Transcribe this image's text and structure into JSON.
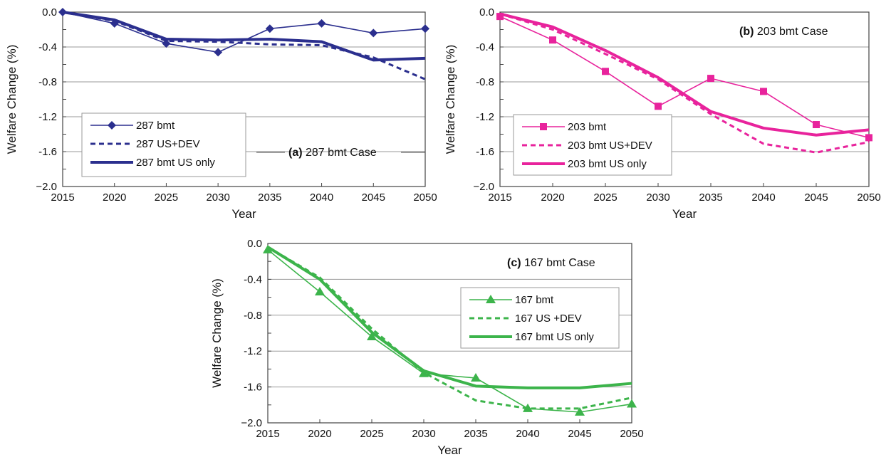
{
  "chart_data": [
    {
      "type": "line",
      "panel_label": "(a)",
      "case_title": "287 bmt Case",
      "xlabel": "Year",
      "ylabel": "Welfare Change (%)",
      "x": [
        2015,
        2020,
        2025,
        2030,
        2035,
        2040,
        2045,
        2050
      ],
      "x_ticks": [
        "2015",
        "2020",
        "2025",
        "2030",
        "2035",
        "2040",
        "2045",
        "2050"
      ],
      "y_ticks": [
        "0.0",
        "-0.4",
        "-0.8",
        "-1.2",
        "-1.6",
        "−2.0"
      ],
      "ylim": [
        -2.0,
        0.0
      ],
      "color": "#2b2f8e",
      "series": [
        {
          "name": "287 bmt",
          "style": "thin-diamond",
          "values": [
            0.0,
            -0.13,
            -0.36,
            -0.46,
            -0.19,
            -0.13,
            -0.24,
            -0.19
          ]
        },
        {
          "name": "287 US+DEV",
          "style": "dashed",
          "values": [
            0.0,
            -0.1,
            -0.33,
            -0.34,
            -0.37,
            -0.38,
            -0.52,
            -0.77
          ]
        },
        {
          "name": "287 bmt US only",
          "style": "thick",
          "values": [
            0.0,
            -0.09,
            -0.31,
            -0.32,
            -0.31,
            -0.34,
            -0.55,
            -0.53
          ]
        }
      ],
      "legend_position": "bottom-left"
    },
    {
      "type": "line",
      "panel_label": "(b)",
      "case_title": "203 bmt Case",
      "xlabel": "Year",
      "ylabel": "Welfare Change (%)",
      "x": [
        2015,
        2020,
        2025,
        2030,
        2035,
        2040,
        2045,
        2050
      ],
      "x_ticks": [
        "2015",
        "2020",
        "2025",
        "2030",
        "2035",
        "2040",
        "2045",
        "2050"
      ],
      "y_ticks": [
        "0.0",
        "-0.4",
        "-0.8",
        "-1.2",
        "-1.6",
        "−2.0"
      ],
      "ylim": [
        -2.0,
        0.0
      ],
      "color": "#e8239c",
      "series": [
        {
          "name": "203 bmt",
          "style": "thin-square",
          "values": [
            -0.05,
            -0.32,
            -0.68,
            -1.08,
            -0.76,
            -0.91,
            -1.29,
            -1.44
          ]
        },
        {
          "name": "203 bmt US+DEV",
          "style": "dashed",
          "values": [
            -0.02,
            -0.2,
            -0.48,
            -0.77,
            -1.17,
            -1.51,
            -1.61,
            -1.49
          ]
        },
        {
          "name": "203 bmt US only",
          "style": "thick",
          "values": [
            -0.02,
            -0.17,
            -0.44,
            -0.75,
            -1.14,
            -1.33,
            -1.41,
            -1.35
          ]
        }
      ],
      "legend_position": "bottom-left"
    },
    {
      "type": "line",
      "panel_label": "(c)",
      "case_title": "167 bmt Case",
      "xlabel": "Year",
      "ylabel": "Welfare Change (%)",
      "x": [
        2015,
        2020,
        2025,
        2030,
        2035,
        2040,
        2045,
        2050
      ],
      "x_ticks": [
        "2015",
        "2020",
        "2025",
        "2030",
        "2035",
        "2040",
        "2045",
        "2050"
      ],
      "y_ticks": [
        "0.0",
        "-0.4",
        "-0.8",
        "-1.2",
        "-1.6",
        "−2.0"
      ],
      "ylim": [
        -2.0,
        0.0
      ],
      "color": "#3cb44b",
      "series": [
        {
          "name": "167 bmt",
          "style": "thin-triangle",
          "values": [
            -0.07,
            -0.54,
            -1.04,
            -1.45,
            -1.5,
            -1.84,
            -1.88,
            -1.79
          ]
        },
        {
          "name": "167 US +DEV",
          "style": "dashed",
          "values": [
            -0.04,
            -0.38,
            -0.95,
            -1.44,
            -1.75,
            -1.84,
            -1.84,
            -1.72
          ]
        },
        {
          "name": "167 bmt US only",
          "style": "thick",
          "values": [
            -0.04,
            -0.4,
            -0.99,
            -1.42,
            -1.59,
            -1.61,
            -1.61,
            -1.56
          ]
        }
      ],
      "legend_position": "right"
    }
  ]
}
